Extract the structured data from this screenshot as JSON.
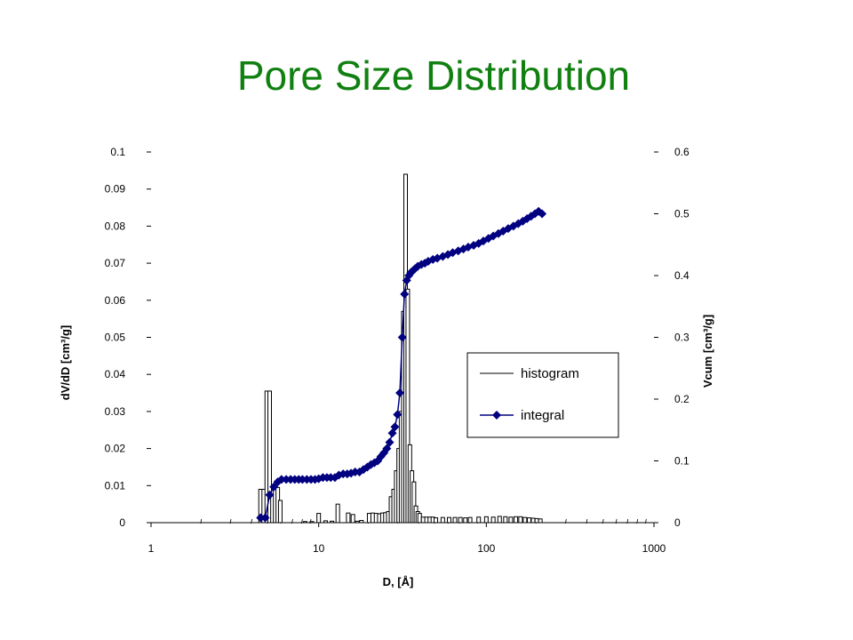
{
  "title": "Pore Size Distribution",
  "chart_data": {
    "type": "bar+scatter-line",
    "title": "Pore Size Distribution",
    "xlabel": "D, [Å]",
    "ylabel_left": "dV/dD [cm³/g]",
    "ylabel_right": "Vcum [cm³/g]",
    "x_scale": "log",
    "xlim": [
      1,
      1000
    ],
    "ylim_left": [
      0,
      0.1
    ],
    "ylim_right": [
      0,
      0.6
    ],
    "x_ticks": [
      "1",
      "10",
      "100",
      "1000"
    ],
    "y_ticks_left": [
      "0",
      "0.01",
      "0.02",
      "0.03",
      "0.04",
      "0.05",
      "0.06",
      "0.07",
      "0.08",
      "0.09",
      "0.1"
    ],
    "y_ticks_right": [
      "0",
      "0.1",
      "0.2",
      "0.3",
      "0.4",
      "0.5",
      "0.6"
    ],
    "legend_position": "center-right",
    "series": [
      {
        "name": "histogram",
        "axis": "left",
        "style": "bar-outline",
        "x": [
          4.5,
          4.7,
          4.9,
          5.1,
          5.3,
          5.5,
          5.7,
          5.9,
          8.3,
          9.1,
          10.0,
          11.0,
          12.0,
          13.0,
          15.0,
          16.0,
          17.0,
          18.0,
          20.0,
          21.0,
          22.0,
          23.0,
          24.0,
          25.0,
          26.0,
          27.0,
          28.0,
          29.0,
          30.0,
          31.0,
          32.0,
          33.0,
          34.0,
          35.0,
          36.0,
          37.0,
          38.0,
          39.0,
          40.0,
          42.0,
          44.0,
          46.0,
          48.0,
          50.0,
          55.0,
          60.0,
          65.0,
          70.0,
          75.0,
          80.0,
          90.0,
          100.0,
          110.0,
          120.0,
          130.0,
          140.0,
          150.0,
          160.0,
          170.0,
          180.0,
          190.0,
          200.0,
          210.0
        ],
        "values": [
          0.009,
          0.009,
          0.0355,
          0.0355,
          0.0075,
          0.0095,
          0.0095,
          0.006,
          0.0003,
          0.0003,
          0.0025,
          0.0005,
          0.0004,
          0.005,
          0.0026,
          0.0022,
          0.0004,
          0.0006,
          0.0025,
          0.0026,
          0.0025,
          0.0024,
          0.0026,
          0.0027,
          0.003,
          0.007,
          0.009,
          0.014,
          0.02,
          0.03,
          0.057,
          0.094,
          0.063,
          0.021,
          0.014,
          0.011,
          0.0045,
          0.003,
          0.0025,
          0.0015,
          0.0015,
          0.0015,
          0.0015,
          0.0013,
          0.0014,
          0.0014,
          0.0014,
          0.0014,
          0.0013,
          0.0014,
          0.0015,
          0.0016,
          0.0015,
          0.0017,
          0.0016,
          0.0015,
          0.0016,
          0.0016,
          0.0014,
          0.0013,
          0.0012,
          0.0011,
          0.001
        ]
      },
      {
        "name": "integral",
        "axis": "right",
        "style": "line-diamond",
        "x": [
          4.5,
          4.8,
          5.1,
          5.4,
          5.7,
          6.0,
          6.4,
          6.8,
          7.2,
          7.6,
          8.0,
          8.5,
          9.0,
          9.5,
          10.0,
          10.6,
          11.2,
          11.8,
          12.5,
          13.2,
          14.0,
          14.8,
          15.6,
          16.5,
          17.5,
          18.5,
          19.5,
          20.5,
          21.5,
          22.5,
          23.5,
          24.5,
          25.5,
          26.5,
          27.5,
          28.5,
          29.5,
          30.5,
          31.5,
          32.5,
          33.5,
          34.5,
          35.5,
          36.5,
          37.5,
          39.0,
          41.0,
          43.0,
          45.0,
          48.0,
          51.0,
          55.0,
          59.0,
          63.0,
          68.0,
          73.0,
          78.0,
          84.0,
          90.0,
          96.0,
          103.0,
          110.0,
          118.0,
          126.0,
          135.0,
          145.0,
          155.0,
          165.0,
          175.0,
          185.0,
          195.0,
          205.0,
          215.0
        ],
        "values": [
          0.008,
          0.008,
          0.045,
          0.058,
          0.066,
          0.07,
          0.07,
          0.07,
          0.07,
          0.07,
          0.07,
          0.07,
          0.07,
          0.07,
          0.071,
          0.073,
          0.073,
          0.073,
          0.073,
          0.077,
          0.079,
          0.079,
          0.08,
          0.082,
          0.082,
          0.086,
          0.09,
          0.094,
          0.097,
          0.1,
          0.107,
          0.113,
          0.12,
          0.13,
          0.145,
          0.155,
          0.175,
          0.21,
          0.3,
          0.37,
          0.392,
          0.4,
          0.405,
          0.408,
          0.411,
          0.415,
          0.418,
          0.42,
          0.423,
          0.426,
          0.428,
          0.431,
          0.434,
          0.437,
          0.44,
          0.443,
          0.446,
          0.449,
          0.452,
          0.456,
          0.46,
          0.464,
          0.468,
          0.472,
          0.476,
          0.48,
          0.484,
          0.488,
          0.492,
          0.496,
          0.5,
          0.504,
          0.5
        ]
      }
    ]
  }
}
